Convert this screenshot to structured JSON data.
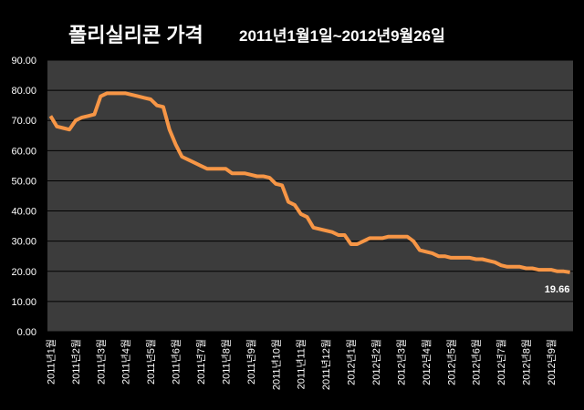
{
  "chart_data": {
    "type": "line",
    "title": "폴리실리콘 가격",
    "subtitle": "2011년1월1일~2012년9월26일",
    "categories": [
      "2011년1월",
      null,
      null,
      null,
      "2011년2월",
      null,
      null,
      null,
      "2011년3월",
      null,
      null,
      null,
      "2011년4월",
      null,
      null,
      null,
      "2011년5월",
      null,
      null,
      null,
      "2011년6월",
      null,
      null,
      null,
      "2011년7월",
      null,
      null,
      null,
      "2011년8월",
      null,
      null,
      null,
      "2011년9월",
      null,
      null,
      null,
      "2011년10월",
      null,
      null,
      null,
      "2011년11월",
      null,
      null,
      null,
      "2011년12월",
      null,
      null,
      null,
      "2012년1월",
      null,
      null,
      null,
      "2012년2월",
      null,
      null,
      null,
      "2012년3월",
      null,
      null,
      null,
      "2012년4월",
      null,
      null,
      null,
      "2012년5월",
      null,
      null,
      null,
      "2012년6월",
      null,
      null,
      null,
      "2012년7월",
      null,
      null,
      null,
      "2012년8월",
      null,
      null,
      null,
      "2012년9월",
      null,
      null,
      null
    ],
    "values": [
      71.5,
      68,
      67.5,
      67,
      70,
      71,
      71.5,
      72,
      78,
      79,
      79,
      79,
      79,
      78.5,
      78,
      77.5,
      77,
      75,
      74.5,
      67,
      62,
      58,
      57,
      56,
      55,
      54,
      54,
      54,
      54,
      52.5,
      52.5,
      52.5,
      52,
      51.5,
      51.5,
      51,
      49,
      48.5,
      43,
      42,
      39,
      38,
      34.5,
      34,
      33.5,
      33,
      32,
      32,
      29,
      29,
      30,
      31,
      31,
      31,
      31.5,
      31.5,
      31.5,
      31.5,
      30,
      27,
      26.5,
      26,
      25,
      25,
      24.5,
      24.5,
      24.5,
      24.5,
      24,
      24,
      23.5,
      23,
      22,
      21.5,
      21.5,
      21.5,
      21,
      21,
      20.5,
      20.5,
      20.5,
      20,
      20,
      19.66
    ],
    "color": "#f79646",
    "ylim": [
      0,
      90
    ],
    "yticks": [
      {
        "value": 0,
        "label": "0.00"
      },
      {
        "value": 10,
        "label": "10.00"
      },
      {
        "value": 20,
        "label": "20.00"
      },
      {
        "value": 30,
        "label": "30.00"
      },
      {
        "value": 40,
        "label": "40.00"
      },
      {
        "value": 50,
        "label": "50.00"
      },
      {
        "value": 60,
        "label": "60.00"
      },
      {
        "value": 70,
        "label": "70.00"
      },
      {
        "value": 80,
        "label": "80.00"
      },
      {
        "value": 90,
        "label": "90.00"
      }
    ],
    "grid": true
  }
}
